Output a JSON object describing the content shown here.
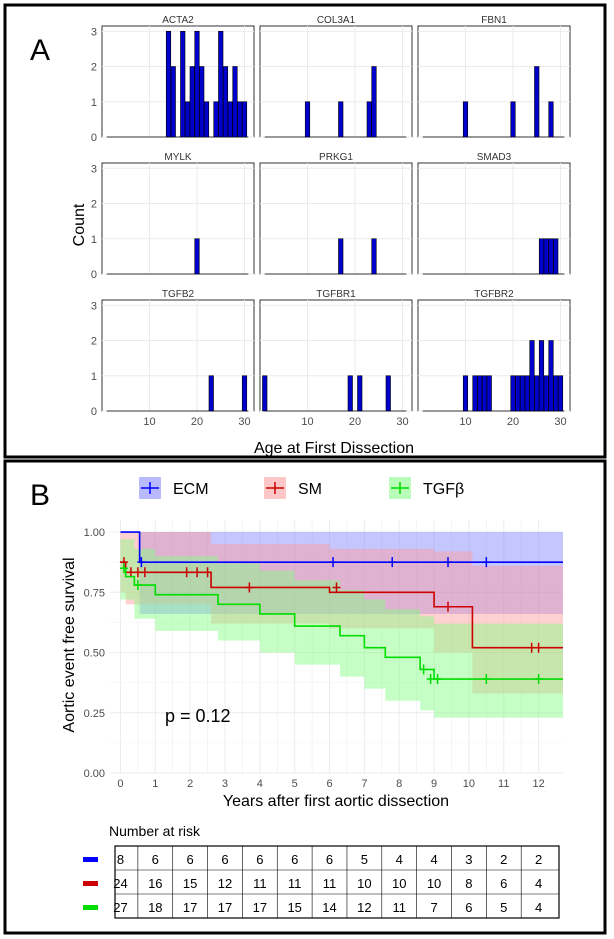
{
  "panel_a": {
    "letter": "A",
    "ylabel": "Count",
    "xlabel": "Age at First Dissection",
    "xticks": [
      10,
      20,
      30
    ],
    "yticks": [
      0,
      1,
      2,
      3
    ],
    "xlim": [
      0,
      32
    ],
    "ylim": [
      0,
      3.15
    ],
    "bar_color": "#0000cc"
  },
  "panel_b": {
    "letter": "B",
    "ylabel": "Aortic event free survival",
    "xlabel": "Years after first aortic dissection",
    "pvalue": "p = 0.12",
    "risk_title": "Number at risk",
    "xticks": [
      0,
      1,
      2,
      3,
      4,
      5,
      6,
      7,
      8,
      9,
      10,
      11,
      12
    ],
    "yticks": [
      "0.00",
      "0.25",
      "0.50",
      "0.75",
      "1.00"
    ],
    "risk_times": [
      0,
      1,
      2,
      3,
      4,
      5,
      6,
      7,
      8,
      9,
      10,
      11,
      12
    ]
  },
  "chart_data": [
    {
      "type": "bar",
      "title": "",
      "xlabel": "Age at First Dissection",
      "ylabel": "Count",
      "ylim": [
        0,
        3
      ],
      "xlim": [
        0,
        32
      ],
      "facets": [
        {
          "name": "ACTA2",
          "bars": [
            [
              14,
              3
            ],
            [
              15,
              2
            ],
            [
              17,
              3
            ],
            [
              18,
              1
            ],
            [
              19,
              2
            ],
            [
              20,
              3
            ],
            [
              21,
              2
            ],
            [
              22,
              1
            ],
            [
              24,
              1
            ],
            [
              25,
              3
            ],
            [
              26,
              2
            ],
            [
              27,
              1
            ],
            [
              28,
              2
            ],
            [
              29,
              1
            ],
            [
              30,
              1
            ]
          ]
        },
        {
          "name": "COL3A1",
          "bars": [
            [
              10,
              1
            ],
            [
              17,
              1
            ],
            [
              23,
              1
            ],
            [
              24,
              2
            ]
          ]
        },
        {
          "name": "FBN1",
          "bars": [
            [
              10,
              1
            ],
            [
              20,
              1
            ],
            [
              25,
              2
            ],
            [
              28,
              1
            ]
          ]
        },
        {
          "name": "MYLK",
          "bars": [
            [
              20,
              1
            ]
          ]
        },
        {
          "name": "PRKG1",
          "bars": [
            [
              17,
              1
            ],
            [
              24,
              1
            ]
          ]
        },
        {
          "name": "SMAD3",
          "bars": [
            [
              26,
              1
            ],
            [
              27,
              1
            ],
            [
              28,
              1
            ],
            [
              29,
              1
            ]
          ]
        },
        {
          "name": "TGFB2",
          "bars": [
            [
              23,
              1
            ],
            [
              30,
              1
            ]
          ]
        },
        {
          "name": "TGFBR1",
          "bars": [
            [
              1,
              1
            ],
            [
              19,
              1
            ],
            [
              21,
              1
            ],
            [
              27,
              1
            ]
          ]
        },
        {
          "name": "TGFBR2",
          "bars": [
            [
              10,
              1
            ],
            [
              12,
              1
            ],
            [
              13,
              1
            ],
            [
              14,
              1
            ],
            [
              15,
              1
            ],
            [
              20,
              1
            ],
            [
              21,
              1
            ],
            [
              22,
              1
            ],
            [
              23,
              1
            ],
            [
              24,
              2
            ],
            [
              25,
              1
            ],
            [
              26,
              2
            ],
            [
              27,
              1
            ],
            [
              28,
              2
            ],
            [
              29,
              1
            ],
            [
              30,
              1
            ]
          ]
        }
      ]
    },
    {
      "type": "line",
      "title": "",
      "xlabel": "Years after first aortic dissection",
      "ylabel": "Aortic event free survival",
      "xlim": [
        -0.3,
        12.7
      ],
      "ylim": [
        0,
        1.05
      ],
      "legend_position": "top",
      "series": [
        {
          "name": "ECM",
          "color": "#0000ff",
          "fill": "#8080ff",
          "steps": [
            [
              0,
              1.0
            ],
            [
              0.55,
              0.875
            ],
            [
              12.7,
              0.875
            ]
          ],
          "ci": [
            [
              0,
              1.0,
              1.0
            ],
            [
              0.55,
              0.66,
              1.0
            ],
            [
              10.0,
              0.66,
              1.0
            ],
            [
              12.7,
              0.66,
              1.0
            ]
          ],
          "censors": [
            [
              0.6,
              0.875
            ],
            [
              6.1,
              0.875
            ],
            [
              7.8,
              0.875
            ],
            [
              9.4,
              0.875
            ],
            [
              10.5,
              0.875
            ]
          ],
          "at_risk": [
            8,
            6,
            6,
            6,
            6,
            6,
            6,
            5,
            4,
            4,
            3,
            2,
            2
          ]
        },
        {
          "name": "SM",
          "color": "#cc0000",
          "fill": "#ff9999",
          "steps": [
            [
              0,
              0.875
            ],
            [
              0.15,
              0.833
            ],
            [
              2.6,
              0.77
            ],
            [
              6.0,
              0.75
            ],
            [
              9.0,
              0.69
            ],
            [
              10.1,
              0.52
            ],
            [
              12.7,
              0.52
            ]
          ],
          "ci": [
            [
              0,
              0.75,
              1.0
            ],
            [
              0.15,
              0.7,
              1.0
            ],
            [
              2.6,
              0.62,
              0.95
            ],
            [
              6.0,
              0.6,
              0.93
            ],
            [
              9.0,
              0.5,
              0.92
            ],
            [
              10.1,
              0.33,
              0.86
            ],
            [
              12.7,
              0.33,
              0.86
            ]
          ],
          "censors": [
            [
              0.1,
              0.875
            ],
            [
              0.3,
              0.833
            ],
            [
              0.5,
              0.833
            ],
            [
              0.7,
              0.833
            ],
            [
              1.9,
              0.833
            ],
            [
              2.2,
              0.833
            ],
            [
              2.5,
              0.833
            ],
            [
              3.7,
              0.77
            ],
            [
              6.2,
              0.77
            ],
            [
              9.4,
              0.69
            ],
            [
              11.8,
              0.52
            ],
            [
              12.0,
              0.52
            ]
          ],
          "at_risk": [
            24,
            16,
            15,
            12,
            11,
            11,
            11,
            10,
            10,
            10,
            8,
            6,
            4
          ]
        },
        {
          "name": "TGFβ",
          "color": "#00dd00",
          "fill": "#80ff80",
          "steps": [
            [
              0,
              0.85
            ],
            [
              0.15,
              0.815
            ],
            [
              0.4,
              0.78
            ],
            [
              1.0,
              0.74
            ],
            [
              2.8,
              0.7
            ],
            [
              4.0,
              0.66
            ],
            [
              5.0,
              0.61
            ],
            [
              6.3,
              0.57
            ],
            [
              7.0,
              0.52
            ],
            [
              7.6,
              0.48
            ],
            [
              8.6,
              0.43
            ],
            [
              9.0,
              0.39
            ],
            [
              12.7,
              0.39
            ]
          ],
          "ci": [
            [
              0,
              0.72,
              0.97
            ],
            [
              0.4,
              0.64,
              0.93
            ],
            [
              1.0,
              0.59,
              0.9
            ],
            [
              2.8,
              0.55,
              0.87
            ],
            [
              4.0,
              0.5,
              0.84
            ],
            [
              5.0,
              0.45,
              0.8
            ],
            [
              6.3,
              0.4,
              0.76
            ],
            [
              7.0,
              0.35,
              0.72
            ],
            [
              7.6,
              0.3,
              0.68
            ],
            [
              8.6,
              0.26,
              0.65
            ],
            [
              9.0,
              0.23,
              0.62
            ],
            [
              12.7,
              0.23,
              0.62
            ]
          ],
          "censors": [
            [
              0.1,
              0.85
            ],
            [
              0.5,
              0.78
            ],
            [
              8.7,
              0.43
            ],
            [
              8.9,
              0.39
            ],
            [
              9.1,
              0.39
            ],
            [
              10.5,
              0.39
            ],
            [
              12.0,
              0.39
            ]
          ],
          "at_risk": [
            27,
            18,
            17,
            17,
            17,
            15,
            14,
            12,
            11,
            7,
            6,
            5,
            4
          ]
        }
      ]
    }
  ]
}
